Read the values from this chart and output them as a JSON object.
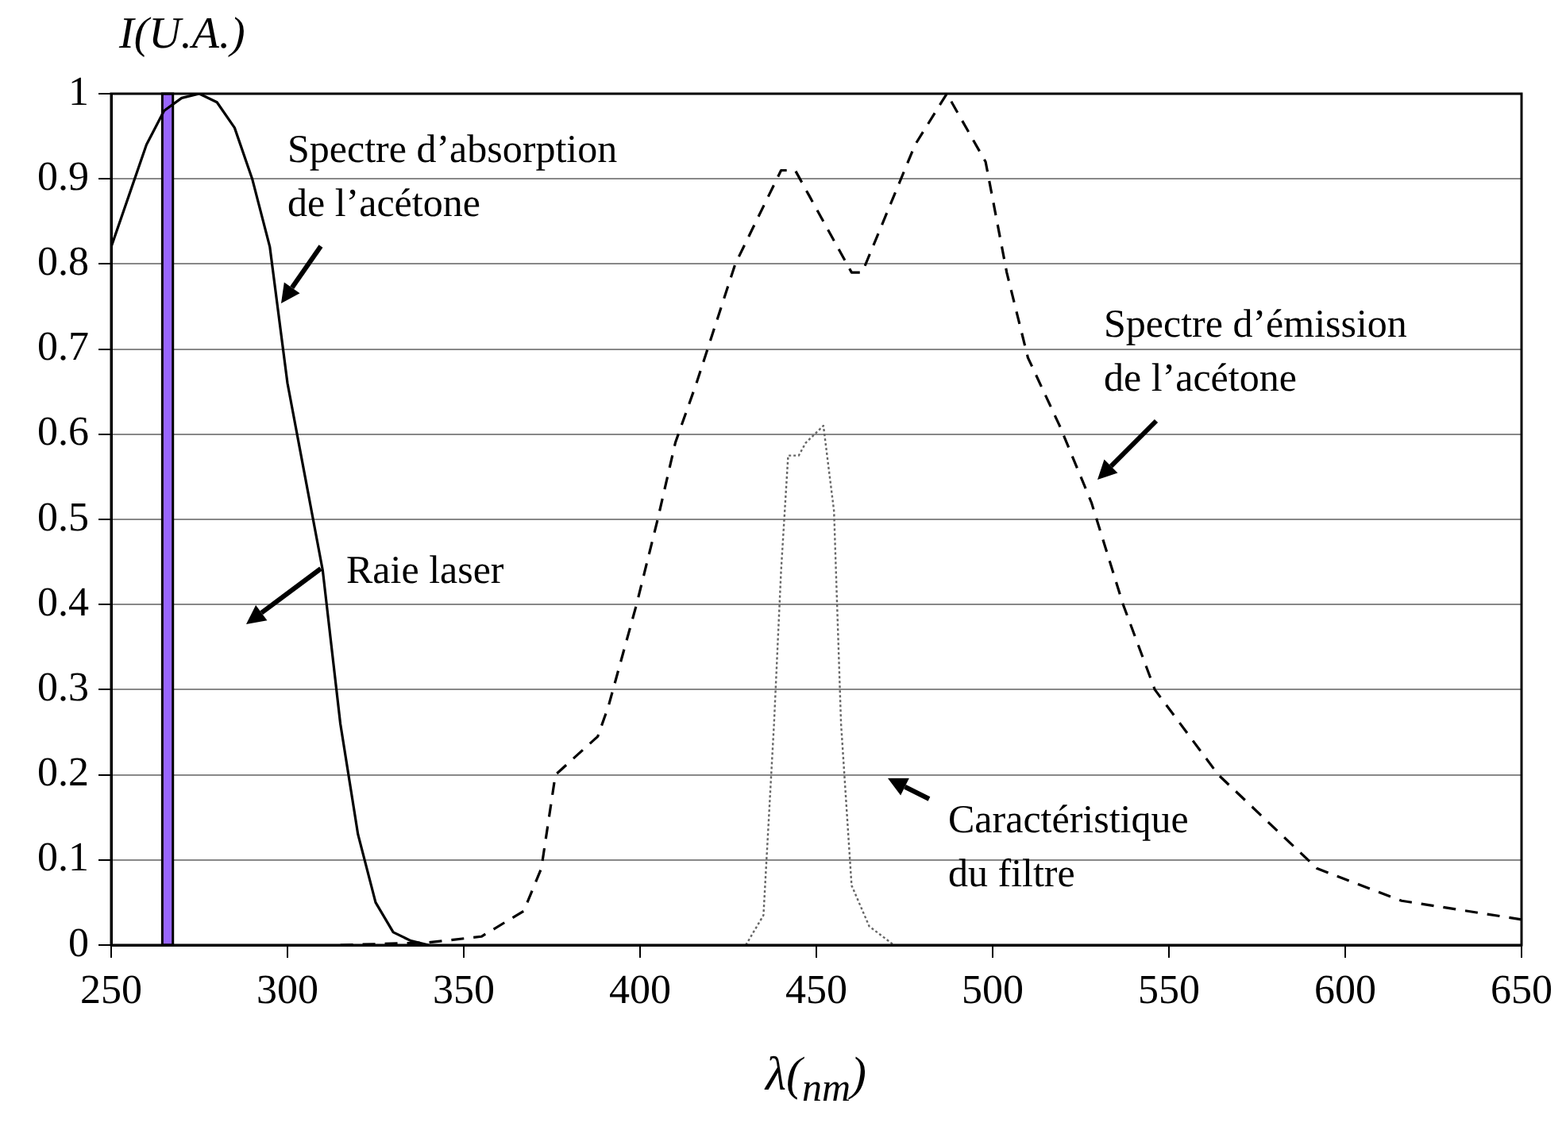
{
  "chart_data": {
    "type": "line",
    "xlabel": "λ($_{nm}$)",
    "ylabel": "I(U.A.)",
    "xlim": [
      250,
      650
    ],
    "xticks": [
      250,
      300,
      350,
      400,
      450,
      500,
      550,
      600,
      650
    ],
    "ylim": [
      0,
      1
    ],
    "yticks": [
      0,
      0.1,
      0.2,
      0.3,
      0.4,
      0.5,
      0.6,
      0.7,
      0.8,
      0.9,
      1
    ],
    "grid": "y",
    "legend": false,
    "marker": "none",
    "series": [
      {
        "color": "#000000",
        "line_style": "solid",
        "x": [
          250,
          255,
          260,
          265,
          270,
          275,
          280,
          285,
          290,
          295,
          300,
          305,
          310,
          315,
          320,
          325,
          330,
          335,
          340
        ],
        "values": [
          0.82,
          0.88,
          0.94,
          0.98,
          0.995,
          1.0,
          0.99,
          0.96,
          0.9,
          0.82,
          0.66,
          0.55,
          0.44,
          0.26,
          0.13,
          0.05,
          0.015,
          0.005,
          0
        ]
      },
      {
        "color": "#000000",
        "line_style": "dashed",
        "x": [
          315,
          340,
          355,
          367,
          372,
          376,
          388,
          391,
          399,
          405,
          410,
          416,
          427,
          440,
          444,
          448,
          460,
          463,
          478,
          487,
          498,
          504,
          510,
          519,
          528,
          537,
          546,
          564,
          592,
          616,
          650
        ],
        "values": [
          0,
          0.003,
          0.01,
          0.04,
          0.09,
          0.2,
          0.245,
          0.28,
          0.4,
          0.5,
          0.59,
          0.66,
          0.8,
          0.91,
          0.91,
          0.88,
          0.79,
          0.79,
          0.94,
          1.0,
          0.92,
          0.79,
          0.69,
          0.61,
          0.52,
          0.4,
          0.3,
          0.2,
          0.09,
          0.052,
          0.03
        ]
      },
      {
        "color": "#666666",
        "line_style": "dotted",
        "x": [
          430,
          435,
          438,
          440,
          442,
          445,
          447,
          452,
          455,
          457,
          460,
          465,
          472
        ],
        "values": [
          0,
          0.035,
          0.26,
          0.44,
          0.575,
          0.575,
          0.59,
          0.61,
          0.51,
          0.26,
          0.07,
          0.022,
          0
        ]
      }
    ],
    "bands": [
      {
        "axis": "x",
        "from": 264.5,
        "to": 267.5,
        "color": "#9966ff"
      }
    ],
    "annotations": [
      "Spectre d’absorption de l’acétone",
      "Raie laser",
      "Spectre d’émission de l’acétone",
      "Caractéristique du filtre"
    ]
  }
}
